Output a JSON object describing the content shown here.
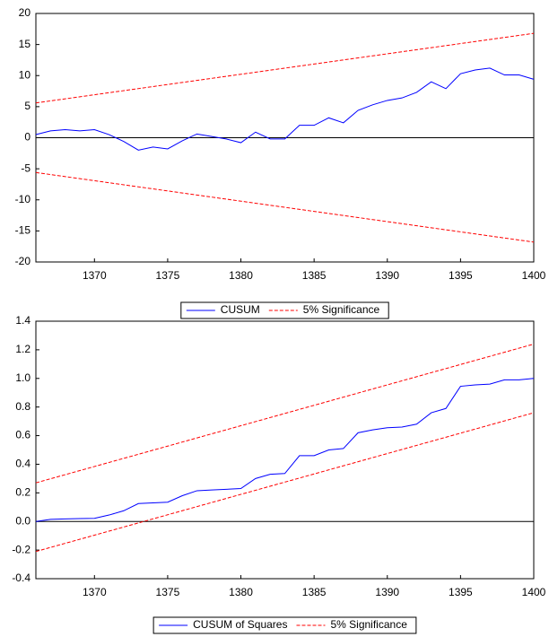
{
  "chart_data": [
    {
      "type": "line",
      "x": [
        1366,
        1367,
        1368,
        1369,
        1370,
        1371,
        1372,
        1373,
        1374,
        1375,
        1376,
        1377,
        1378,
        1379,
        1380,
        1381,
        1382,
        1383,
        1384,
        1385,
        1386,
        1387,
        1388,
        1389,
        1390,
        1391,
        1392,
        1393,
        1394,
        1395,
        1396,
        1397,
        1398,
        1399,
        1400
      ],
      "xlim": [
        1366,
        1400
      ],
      "xticks": [
        1370,
        1375,
        1380,
        1385,
        1390,
        1395,
        1400
      ],
      "ylim": [
        -20,
        20
      ],
      "yticks": [
        -20,
        -15,
        -10,
        -5,
        0,
        5,
        10,
        15,
        20
      ],
      "zero_line": true,
      "series": [
        {
          "name": "CUSUM",
          "color": "#0000ff",
          "values": [
            0.5,
            1.1,
            1.3,
            1.1,
            1.3,
            0.5,
            -0.6,
            -2.0,
            -1.5,
            -1.8,
            -0.5,
            0.6,
            0.2,
            -0.2,
            -0.8,
            0.9,
            -0.2,
            -0.2,
            2.0,
            2.0,
            3.2,
            2.4,
            4.4,
            5.3,
            6.0,
            6.4,
            7.3,
            9.0,
            7.9,
            10.3,
            10.9,
            11.2,
            10.1,
            10.1,
            9.4
          ]
        },
        {
          "name": "5% Significance",
          "color": "#ff0000",
          "dashed": true,
          "x": [
            1366,
            1400
          ],
          "values": [
            5.6,
            16.8
          ],
          "lower": [
            -5.6,
            -16.8
          ]
        }
      ]
    },
    {
      "type": "line",
      "x": [
        1366,
        1367,
        1368,
        1369,
        1370,
        1371,
        1372,
        1373,
        1374,
        1375,
        1376,
        1377,
        1378,
        1379,
        1380,
        1381,
        1382,
        1383,
        1384,
        1385,
        1386,
        1387,
        1388,
        1389,
        1390,
        1391,
        1392,
        1393,
        1394,
        1395,
        1396,
        1397,
        1398,
        1399,
        1400
      ],
      "xlim": [
        1366,
        1400
      ],
      "xticks": [
        1370,
        1375,
        1380,
        1385,
        1390,
        1395,
        1400
      ],
      "ylim": [
        -0.4,
        1.4
      ],
      "yticks": [
        -0.4,
        -0.2,
        {
          "value": 0,
          "label": "0.0"
        },
        0.2,
        0.4,
        0.6,
        0.8,
        {
          "value": 1,
          "label": "1.0"
        },
        1.2,
        1.4
      ],
      "zero_line": true,
      "series": [
        {
          "name": "CUSUM of Squares",
          "color": "#0000ff",
          "values": [
            0.0,
            0.015,
            0.018,
            0.02,
            0.022,
            0.045,
            0.075,
            0.125,
            0.13,
            0.135,
            0.18,
            0.215,
            0.22,
            0.225,
            0.23,
            0.3,
            0.33,
            0.335,
            0.46,
            0.46,
            0.5,
            0.51,
            0.62,
            0.64,
            0.655,
            0.66,
            0.68,
            0.76,
            0.79,
            0.945,
            0.955,
            0.96,
            0.99,
            0.99,
            1.0
          ]
        },
        {
          "name": "5% Significance",
          "color": "#ff0000",
          "dashed": true,
          "x": [
            1366,
            1400
          ],
          "values": [
            0.27,
            1.24
          ],
          "lower": [
            -0.21,
            0.76
          ]
        }
      ]
    }
  ]
}
